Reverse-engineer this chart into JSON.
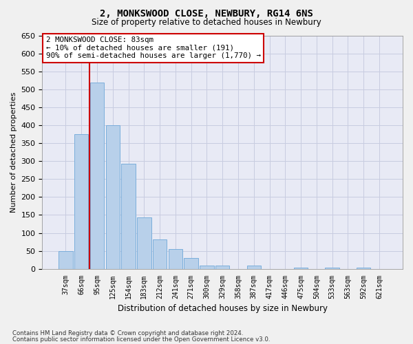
{
  "title": "2, MONKSWOOD CLOSE, NEWBURY, RG14 6NS",
  "subtitle": "Size of property relative to detached houses in Newbury",
  "xlabel": "Distribution of detached houses by size in Newbury",
  "ylabel": "Number of detached properties",
  "footnote1": "Contains HM Land Registry data © Crown copyright and database right 2024.",
  "footnote2": "Contains public sector information licensed under the Open Government Licence v3.0.",
  "categories": [
    "37sqm",
    "66sqm",
    "95sqm",
    "125sqm",
    "154sqm",
    "183sqm",
    "212sqm",
    "241sqm",
    "271sqm",
    "300sqm",
    "329sqm",
    "358sqm",
    "387sqm",
    "417sqm",
    "446sqm",
    "475sqm",
    "504sqm",
    "533sqm",
    "563sqm",
    "592sqm",
    "621sqm"
  ],
  "values": [
    50,
    375,
    518,
    400,
    292,
    143,
    82,
    55,
    30,
    10,
    10,
    0,
    10,
    0,
    0,
    4,
    0,
    4,
    0,
    4,
    0
  ],
  "bar_color": "#b8d0ea",
  "bar_edge_color": "#7aaedb",
  "grid_color": "#c8cce0",
  "bg_color": "#e8eaf5",
  "fig_bg_color": "#f0f0f0",
  "vline_x": 1.5,
  "vline_color": "#cc0000",
  "annotation_line1": "2 MONKSWOOD CLOSE: 83sqm",
  "annotation_line2": "← 10% of detached houses are smaller (191)",
  "annotation_line3": "90% of semi-detached houses are larger (1,770) →",
  "annotation_box_color": "#ffffff",
  "annotation_border_color": "#cc0000",
  "ylim": [
    0,
    650
  ],
  "yticks": [
    0,
    50,
    100,
    150,
    200,
    250,
    300,
    350,
    400,
    450,
    500,
    550,
    600,
    650
  ]
}
